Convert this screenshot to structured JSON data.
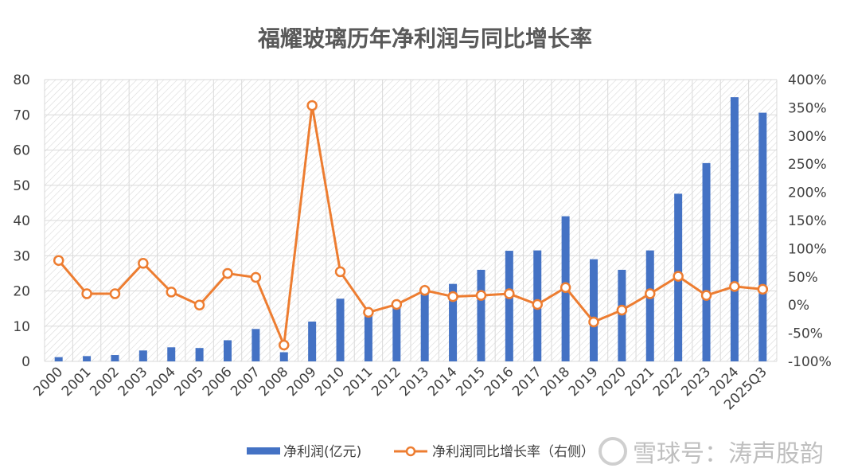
{
  "chart_data": {
    "type": "bar+line",
    "title": "福耀玻璃历年净利润与同比增长率",
    "categories": [
      "2000",
      "2001",
      "2002",
      "2003",
      "2004",
      "2005",
      "2006",
      "2007",
      "2008",
      "2009",
      "2010",
      "2011",
      "2012",
      "2013",
      "2014",
      "2015",
      "2016",
      "2017",
      "2018",
      "2019",
      "2020",
      "2021",
      "2022",
      "2023",
      "2024",
      "2025Q3"
    ],
    "series": [
      {
        "name": "净利润(亿元)",
        "type": "bar",
        "axis": "left",
        "color": "#4472C4",
        "values": [
          1.2,
          1.5,
          1.8,
          3.1,
          4.0,
          3.8,
          6.0,
          9.2,
          2.6,
          11.3,
          17.8,
          14.3,
          16.2,
          20.4,
          22.0,
          26.0,
          31.4,
          31.5,
          41.2,
          29.0,
          26.0,
          31.5,
          47.6,
          56.3,
          75.0,
          70.6
        ]
      },
      {
        "name": "净利润同比增长率（右侧）",
        "type": "line",
        "axis": "right",
        "color": "#ED7D31",
        "values": [
          79,
          20,
          20,
          74,
          23,
          0,
          56,
          49,
          -71,
          354,
          59,
          -13,
          1,
          26,
          15,
          17,
          20,
          1,
          31,
          -30,
          -9,
          20,
          51,
          17,
          33,
          28
        ]
      }
    ],
    "y_left": {
      "min": 0,
      "max": 80,
      "step": 10,
      "ticks": [
        "0",
        "10",
        "20",
        "30",
        "40",
        "50",
        "60",
        "70",
        "80"
      ]
    },
    "y_right": {
      "min": -100,
      "max": 400,
      "step": 50,
      "ticks": [
        "-100%",
        "-50%",
        "0%",
        "50%",
        "100%",
        "150%",
        "200%",
        "250%",
        "300%",
        "350%",
        "400%"
      ]
    },
    "legend": {
      "position": "bottom",
      "bar_label": "净利润(亿元)",
      "line_label": "净利润同比增长率（右侧）"
    },
    "grid": true
  },
  "watermark": {
    "text": "雪球号：涛声股韵"
  }
}
